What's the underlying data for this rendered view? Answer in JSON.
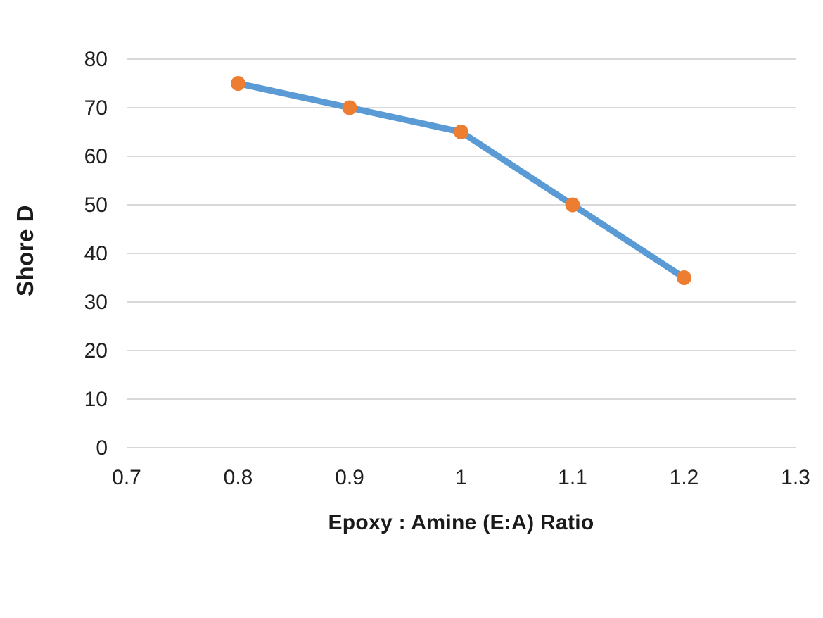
{
  "chart_data": {
    "type": "line",
    "title": "",
    "xlabel": "Epoxy : Amine (E:A) Ratio",
    "ylabel": "Shore D",
    "x": [
      0.8,
      0.9,
      1.0,
      1.1,
      1.2
    ],
    "series": [
      {
        "name": "Shore D",
        "values": [
          75,
          70,
          65,
          50,
          35
        ],
        "line_color": "#5B9BD5",
        "marker_color": "#ED7D31"
      }
    ],
    "xlim": [
      0.7,
      1.3
    ],
    "ylim": [
      0,
      80
    ],
    "x_tick_labels": [
      "0.7",
      "0.8",
      "0.9",
      "1",
      "1.1",
      "1.2",
      "1.3"
    ],
    "x_tick_values": [
      0.7,
      0.8,
      0.9,
      1.0,
      1.1,
      1.2,
      1.3
    ],
    "y_tick_labels": [
      "0",
      "10",
      "20",
      "30",
      "40",
      "50",
      "60",
      "70",
      "80"
    ],
    "y_tick_values": [
      0,
      10,
      20,
      30,
      40,
      50,
      60,
      70,
      80
    ],
    "grid": "horizontal",
    "legend": "none",
    "colors": {
      "gridline": "#D9D9D9",
      "axis_line": "#D6D6D6",
      "text": "#1F1F1F",
      "background": "#FFFFFF"
    }
  }
}
